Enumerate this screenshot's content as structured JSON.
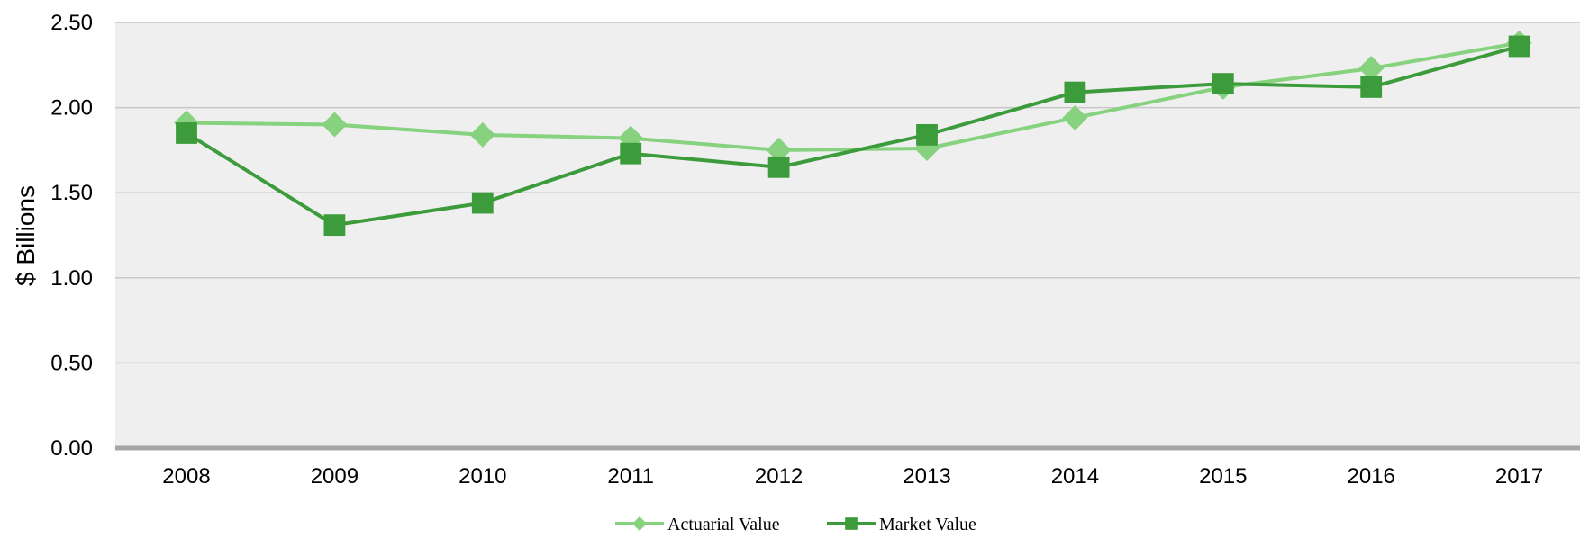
{
  "chart_data": {
    "type": "line",
    "title": "",
    "xlabel": "",
    "ylabel": "$ Billions",
    "categories": [
      "2008",
      "2009",
      "2010",
      "2011",
      "2012",
      "2013",
      "2014",
      "2015",
      "2016",
      "2017"
    ],
    "ylim": [
      0,
      2.5
    ],
    "yticks": [
      "0.00",
      "0.50",
      "1.00",
      "1.50",
      "2.00",
      "2.50"
    ],
    "grid": true,
    "legend": "bottom",
    "series": [
      {
        "name": "Actuarial Value",
        "marker": "diamond",
        "color": "#86d27e",
        "values": [
          1.91,
          1.9,
          1.84,
          1.82,
          1.75,
          1.76,
          1.94,
          2.12,
          2.23,
          2.38
        ]
      },
      {
        "name": "Market Value",
        "marker": "square",
        "color": "#3c9b3a",
        "values": [
          1.85,
          1.31,
          1.44,
          1.73,
          1.65,
          1.84,
          2.09,
          2.14,
          2.12,
          2.36
        ]
      }
    ]
  }
}
